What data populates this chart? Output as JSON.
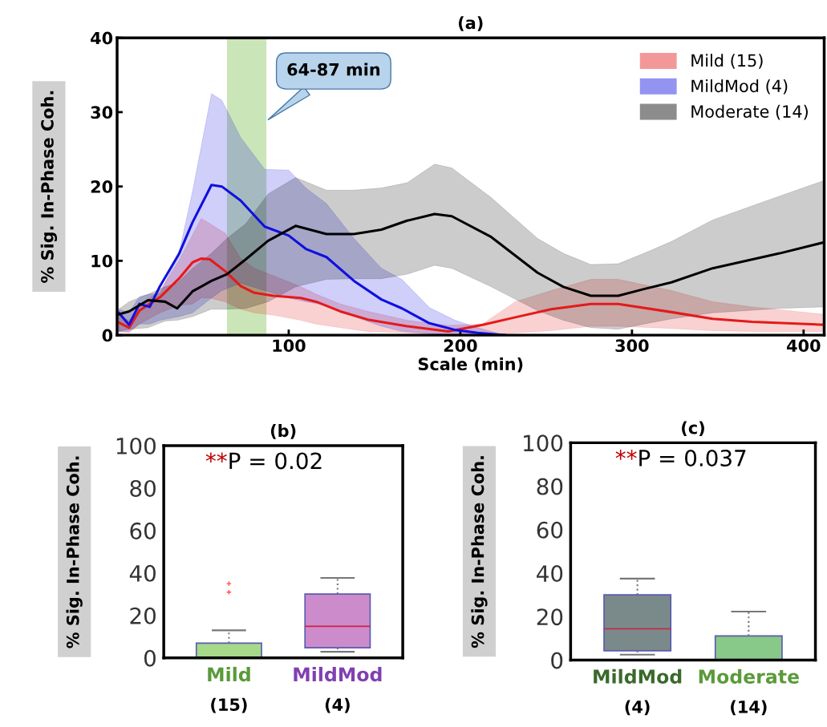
{
  "chart_data": [
    {
      "type": "line",
      "title": "(a)",
      "xlabel": "Scale (min)",
      "ylabel": "% Sig. In-Phase Coh.",
      "xlim": [
        0,
        412
      ],
      "xticks": [
        100,
        200,
        300,
        400
      ],
      "ylim": [
        0,
        40
      ],
      "yticks": [
        0,
        10,
        20,
        30,
        40
      ],
      "grid": false,
      "legend": "top right",
      "bands": [
        {
          "axis": "x",
          "from": 64,
          "to": 87,
          "label": "64-87 min",
          "color": "#b8dca0"
        }
      ],
      "series": [
        {
          "name": "Mild (15)",
          "color": "#e41a1a",
          "x": [
            1,
            7,
            13,
            25,
            36,
            44,
            49,
            54,
            63,
            72,
            80,
            91,
            107,
            116,
            130,
            146,
            169,
            193,
            213,
            232,
            253,
            276,
            292,
            323,
            347,
            370,
            412
          ],
          "values": [
            1.7,
            1.0,
            3.3,
            5.1,
            7.6,
            9.8,
            10.3,
            10.2,
            8.6,
            6.6,
            5.7,
            5.3,
            5.0,
            4.5,
            3.2,
            2.1,
            1.2,
            0.5,
            1.4,
            2.4,
            3.5,
            4.2,
            4.2,
            3.1,
            2.2,
            1.8,
            1.4
          ],
          "upper": [
            2.5,
            2,
            4,
            6,
            10,
            13.5,
            15.7,
            15,
            13.7,
            10.3,
            9,
            8,
            6.5,
            5.5,
            4.2,
            3.2,
            2.0,
            1.3,
            1.5,
            4.5,
            6,
            7.5,
            7.5,
            6,
            4.5,
            3.8,
            2.8
          ],
          "lower": [
            0.5,
            0.3,
            1.5,
            3,
            4,
            4.2,
            5,
            5,
            4.5,
            3.5,
            3,
            2.7,
            2,
            1.5,
            1,
            0.5,
            0.3,
            0,
            0,
            0.3,
            0.6,
            1.2,
            1.2,
            0.9,
            0.6,
            0.5,
            0.5
          ]
        },
        {
          "name": "MildMod (4)",
          "color": "#1010e0",
          "x": [
            1,
            7,
            13,
            19,
            25,
            36,
            44,
            55,
            61,
            72,
            86,
            100,
            110,
            122,
            138,
            154,
            166,
            182,
            197,
            210,
            226
          ],
          "values": [
            3.0,
            1.4,
            4.2,
            3.8,
            6.6,
            10.9,
            15.2,
            20.2,
            20.0,
            18.1,
            14.6,
            13.4,
            11.6,
            10.5,
            7.3,
            4.8,
            3.6,
            1.6,
            0.7,
            0.3,
            0
          ],
          "upper": [
            3.5,
            3,
            5.2,
            5.5,
            5.6,
            11,
            19.4,
            32.5,
            31.6,
            26.6,
            22.3,
            22.2,
            19.8,
            17.7,
            13.0,
            9.0,
            7.5,
            3.7,
            2.0,
            1,
            0
          ],
          "lower": [
            0.5,
            0.5,
            1.5,
            1.5,
            2,
            2.5,
            3,
            5,
            6,
            7,
            6,
            5,
            4.5,
            4,
            2.5,
            1.2,
            0.5,
            0.2,
            0,
            0,
            0
          ]
        },
        {
          "name": "Moderate (14)",
          "color": "#000000",
          "x": [
            1,
            7,
            18,
            28,
            35,
            44,
            55,
            64,
            75,
            88,
            104,
            122,
            138,
            154,
            169,
            185,
            195,
            218,
            245,
            260,
            276,
            292,
            307,
            323,
            347,
            386,
            412
          ],
          "values": [
            2.8,
            3.2,
            4.7,
            4.5,
            3.6,
            5.9,
            7.3,
            8.2,
            10.2,
            12.7,
            14.7,
            13.6,
            13.6,
            14.2,
            15.4,
            16.3,
            16.0,
            13.2,
            8.4,
            6.5,
            5.3,
            5.3,
            6.2,
            7.1,
            9.0,
            11.0,
            12.5
          ],
          "upper": [
            3.5,
            4.5,
            5.5,
            6.5,
            7,
            9,
            11,
            13,
            15,
            19,
            21.2,
            19.5,
            19.5,
            19.8,
            20.5,
            23.0,
            22.5,
            18.5,
            13,
            11,
            9.5,
            9.6,
            11,
            12.6,
            15.5,
            18.7,
            20.8
          ],
          "lower": [
            0.5,
            0.8,
            1,
            1.9,
            2,
            2.5,
            3.5,
            3.5,
            3.6,
            4.5,
            6.5,
            7.5,
            7.6,
            7.6,
            8.2,
            9.4,
            9.0,
            6.5,
            3.3,
            2,
            1,
            0.8,
            1.5,
            2.2,
            3,
            3.6,
            3.8
          ]
        }
      ]
    },
    {
      "type": "box",
      "title": "(b)",
      "ylabel": "% Sig. In-Phase Coh.",
      "ylim": [
        0,
        100
      ],
      "yticks": [
        0,
        20,
        40,
        60,
        80,
        100
      ],
      "grid": false,
      "categories": [
        "Mild\n(15)",
        "MildMod\n(4)"
      ],
      "colors": [
        "#a6d98a",
        "#cc8ccc"
      ],
      "annotations": [
        "**P = 0.02"
      ],
      "boxes": [
        {
          "low": 0,
          "q1": 0,
          "median": 0,
          "q3": 7,
          "high": 13,
          "outliers": [
            31,
            35
          ]
        },
        {
          "low": 2.9,
          "q1": 4.8,
          "median": 14.9,
          "q3": 30.1,
          "high": 37.7
        }
      ]
    },
    {
      "type": "box",
      "title": "(c)",
      "ylabel": "% Sig. In-Phase Coh.",
      "ylim": [
        0,
        100
      ],
      "yticks": [
        0,
        20,
        40,
        60,
        80,
        100
      ],
      "grid": false,
      "categories": [
        "MildMod\n(4)",
        "Moderate\n(14)"
      ],
      "colors": [
        "#7a8a8a",
        "#88c888"
      ],
      "annotations": [
        "**P = 0.037"
      ],
      "boxes": [
        {
          "low": 2.5,
          "q1": 4.3,
          "median": 14.4,
          "q3": 30,
          "high": 37.5
        },
        {
          "low": 0,
          "q1": 0,
          "median": 0,
          "q3": 11.1,
          "high": 22.3
        }
      ]
    }
  ]
}
